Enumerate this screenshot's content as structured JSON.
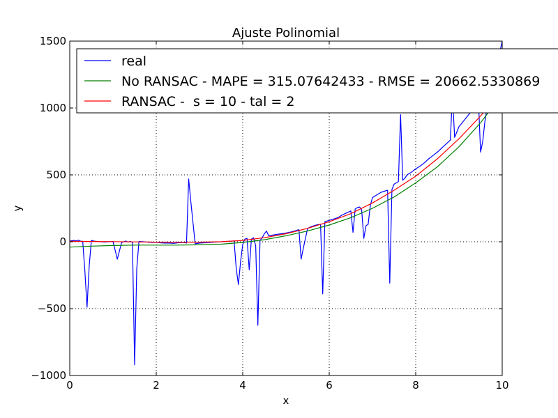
{
  "chart_data": {
    "type": "line",
    "title": "Ajuste Polinomial",
    "xlabel": "x",
    "ylabel": "y",
    "xlim": [
      0,
      10
    ],
    "ylim": [
      -1000,
      1500
    ],
    "xticks": [
      0,
      2,
      4,
      6,
      8,
      10
    ],
    "yticks": [
      -1000,
      -500,
      0,
      500,
      1000,
      1500
    ],
    "xtick_labels": [
      "0",
      "2",
      "4",
      "6",
      "8",
      "10"
    ],
    "ytick_labels": [
      "−1000",
      "−500",
      "0",
      "500",
      "1000",
      "1500"
    ],
    "grid": true,
    "legend_position": "top-left",
    "series": [
      {
        "name": "real",
        "color": "#0000ff",
        "x": [
          0,
          0.05,
          0.1,
          0.15,
          0.2,
          0.25,
          0.3,
          0.35,
          0.4,
          0.45,
          0.5,
          0.55,
          0.6,
          0.7,
          0.8,
          0.9,
          1.0,
          1.1,
          1.2,
          1.3,
          1.35,
          1.4,
          1.45,
          1.5,
          1.55,
          1.6,
          1.7,
          1.8,
          1.9,
          2.0,
          2.1,
          2.2,
          2.3,
          2.4,
          2.5,
          2.6,
          2.65,
          2.7,
          2.75,
          2.8,
          2.9,
          3.0,
          3.1,
          3.2,
          3.3,
          3.4,
          3.5,
          3.6,
          3.7,
          3.8,
          3.85,
          3.9,
          3.95,
          4.0,
          4.05,
          4.1,
          4.15,
          4.2,
          4.25,
          4.3,
          4.35,
          4.4,
          4.45,
          4.5,
          4.55,
          4.6,
          4.7,
          4.8,
          4.9,
          5.0,
          5.1,
          5.2,
          5.3,
          5.35,
          5.4,
          5.5,
          5.6,
          5.7,
          5.8,
          5.85,
          5.9,
          6.0,
          6.1,
          6.2,
          6.3,
          6.4,
          6.5,
          6.55,
          6.6,
          6.65,
          6.7,
          6.75,
          6.8,
          6.85,
          6.9,
          6.95,
          7.0,
          7.1,
          7.2,
          7.3,
          7.35,
          7.4,
          7.45,
          7.5,
          7.6,
          7.65,
          7.7,
          7.75,
          7.8,
          7.9,
          8.0,
          8.1,
          8.2,
          8.3,
          8.4,
          8.5,
          8.6,
          8.7,
          8.8,
          8.85,
          8.9,
          8.95,
          9.0,
          9.1,
          9.2,
          9.3,
          9.4,
          9.45,
          9.5,
          9.55,
          9.6,
          9.65,
          9.7,
          9.8,
          9.9,
          10.0
        ],
        "y": [
          5,
          8,
          10,
          6,
          12,
          4,
          3,
          -220,
          -490,
          -180,
          10,
          5,
          3,
          1,
          -2,
          0,
          2,
          -130,
          -5,
          5,
          -2,
          3,
          -5,
          -920,
          -200,
          2,
          0,
          -3,
          -5,
          -4,
          -8,
          -10,
          -10,
          -12,
          -8,
          -6,
          -5,
          -10,
          470,
          300,
          -15,
          -10,
          -8,
          -6,
          -4,
          -2,
          0,
          2,
          4,
          6,
          -200,
          -320,
          -150,
          -20,
          20,
          25,
          -210,
          20,
          30,
          -30,
          -625,
          10,
          30,
          60,
          80,
          45,
          50,
          55,
          60,
          65,
          72,
          80,
          90,
          -130,
          -50,
          100,
          115,
          125,
          130,
          -390,
          150,
          160,
          170,
          180,
          200,
          215,
          230,
          70,
          245,
          255,
          260,
          240,
          25,
          120,
          130,
          270,
          330,
          350,
          370,
          380,
          385,
          -310,
          390,
          430,
          450,
          950,
          460,
          475,
          500,
          520,
          545,
          565,
          590,
          620,
          645,
          670,
          700,
          730,
          760,
          1100,
          780,
          820,
          860,
          900,
          940,
          980,
          1020,
          1060,
          670,
          750,
          900,
          1000,
          1100,
          1200,
          1350,
          1500
        ]
      },
      {
        "name": "No RANSAC - MAPE = 315.07642433 - RMSE = 20662.5330869",
        "color": "#008000",
        "x": [
          0,
          0.5,
          1.0,
          1.5,
          2.0,
          2.5,
          3.0,
          3.5,
          4.0,
          4.5,
          5.0,
          5.5,
          6.0,
          6.5,
          7.0,
          7.5,
          8.0,
          8.5,
          9.0,
          9.5,
          10.0
        ],
        "y": [
          -40,
          -33,
          -28,
          -25,
          -25,
          -25,
          -23,
          -18,
          -5,
          15,
          45,
          80,
          125,
          180,
          250,
          335,
          440,
          560,
          710,
          890,
          1100
        ]
      },
      {
        "name": "RANSAC -  s = 10 - tal = 2",
        "color": "#ff0000",
        "x": [
          0,
          0.5,
          1.0,
          1.5,
          2.0,
          2.5,
          3.0,
          3.5,
          4.0,
          4.5,
          5.0,
          5.5,
          6.0,
          6.5,
          7.0,
          7.5,
          8.0,
          8.5,
          9.0,
          9.5,
          10.0
        ],
        "y": [
          3,
          2,
          1,
          -1,
          -3,
          -4,
          -3,
          0,
          10,
          30,
          60,
          100,
          150,
          210,
          290,
          385,
          490,
          620,
          770,
          940,
          1130
        ]
      }
    ]
  }
}
